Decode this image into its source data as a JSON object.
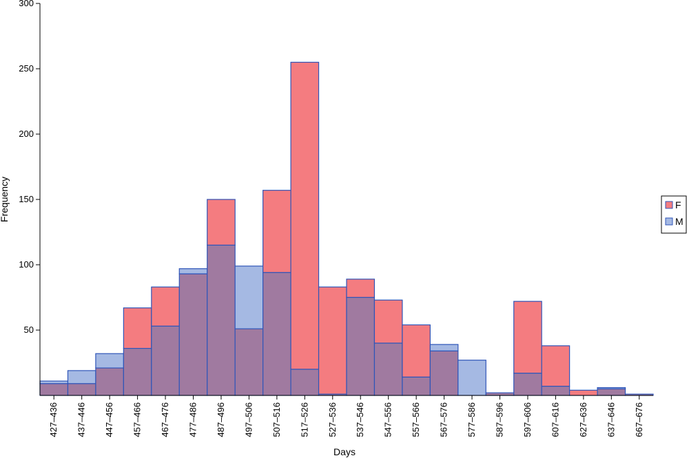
{
  "chart_data": {
    "type": "bar",
    "overlay": true,
    "title": "",
    "xlabel": "Days",
    "ylabel": "Frequency",
    "ylim": [
      0,
      300
    ],
    "yticks": [
      50,
      100,
      150,
      200,
      250,
      300
    ],
    "grid": false,
    "legend_position": "right",
    "categories": [
      "427–436",
      "437–446",
      "447–456",
      "457–466",
      "467–476",
      "477–486",
      "487–496",
      "497–506",
      "507–516",
      "517–526",
      "527–536",
      "537–546",
      "547–556",
      "557–566",
      "567–576",
      "577–586",
      "587–596",
      "597–606",
      "607–616",
      "627–636",
      "637–646",
      "667–676"
    ],
    "series": [
      {
        "name": "F",
        "color": "#f47c80",
        "values": [
          9,
          9,
          21,
          67,
          83,
          93,
          150,
          51,
          157,
          255,
          83,
          89,
          73,
          54,
          34,
          0,
          2,
          72,
          38,
          4,
          5,
          1
        ]
      },
      {
        "name": "M",
        "color": "#a5b9e3",
        "values": [
          11,
          19,
          32,
          36,
          53,
          97,
          115,
          99,
          94,
          20,
          1,
          75,
          40,
          14,
          39,
          27,
          2,
          17,
          7,
          0,
          6,
          1
        ]
      }
    ],
    "overlap_color": "#a07aa0",
    "edge_color": "#2f55b8"
  }
}
